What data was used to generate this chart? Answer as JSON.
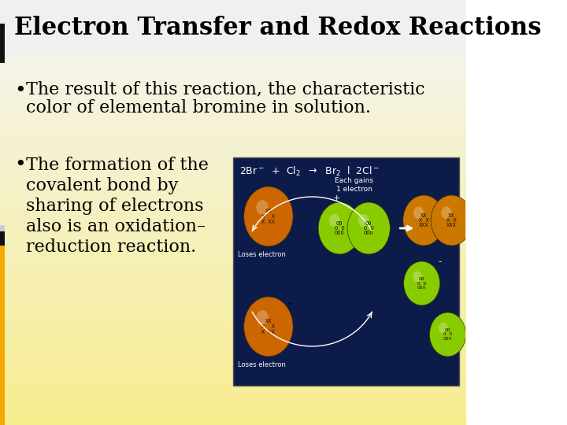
{
  "title": "Electron Transfer and Redox Reactions",
  "title_fontsize": 22,
  "title_color": "#000000",
  "title_font": "DejaVu Serif",
  "bullet1_line1": "The result of this reaction, the characteristic",
  "bullet1_line2": "color of elemental bromine in solution.",
  "bullet2_line1": "The formation of the",
  "bullet2_line2": "covalent bond by",
  "bullet2_line3": "sharing of electrons",
  "bullet2_line4": "also is an oxidation–",
  "bullet2_line5": "reduction reaction.",
  "bullet_fontsize": 16,
  "bullet_font": "DejaVu Serif",
  "bg_color_top": "#f5f5f5",
  "bg_color_bottom": "#f5e890",
  "sidebar_gold": "#f5a800",
  "sidebar_black": "#111111",
  "img_bg": "#0d1b4b",
  "atom_orange": "#cc6600",
  "atom_green": "#88cc00",
  "atom_orange_br2": "#cc7700"
}
